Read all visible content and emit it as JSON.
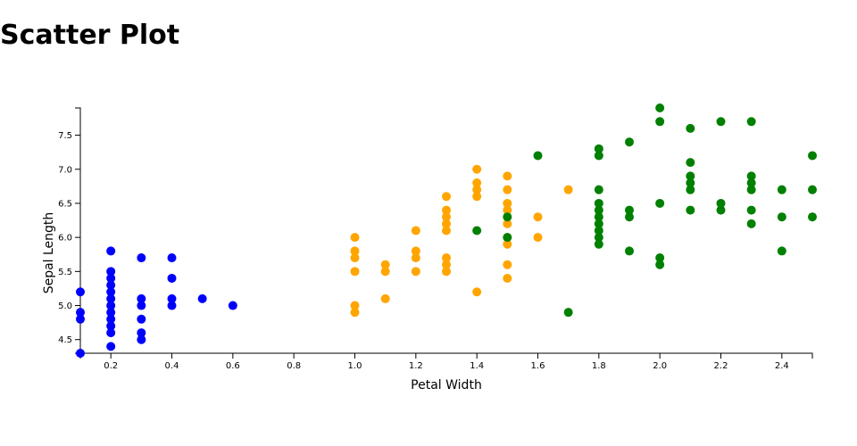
{
  "title": "Scatter Plot",
  "colors": {
    "setosa": "#0000ff",
    "versicolor": "#ffa500",
    "virginica": "#008000"
  },
  "chart_data": {
    "type": "scatter",
    "title": "Scatter Plot",
    "xlabel": "Petal Width",
    "ylabel": "Sepal Length",
    "xlim": [
      0.1,
      2.5
    ],
    "ylim": [
      4.3,
      7.9
    ],
    "x_ticks": [
      "0.2",
      "0.4",
      "0.6",
      "0.8",
      "1.0",
      "1.2",
      "1.4",
      "1.6",
      "1.8",
      "2.0",
      "2.2",
      "2.4"
    ],
    "y_ticks": [
      "4.5",
      "5.0",
      "5.5",
      "6.0",
      "6.5",
      "7.0",
      "7.5"
    ],
    "grid": false,
    "series": [
      {
        "color": "#0000ff",
        "points": [
          [
            0.1,
            5.2
          ],
          [
            0.1,
            4.9
          ],
          [
            0.1,
            4.8
          ],
          [
            0.1,
            4.3
          ],
          [
            0.2,
            5.8
          ],
          [
            0.2,
            5.5
          ],
          [
            0.2,
            5.4
          ],
          [
            0.2,
            5.3
          ],
          [
            0.2,
            5.2
          ],
          [
            0.2,
            5.1
          ],
          [
            0.2,
            5.0
          ],
          [
            0.2,
            4.9
          ],
          [
            0.2,
            4.8
          ],
          [
            0.2,
            4.7
          ],
          [
            0.2,
            4.6
          ],
          [
            0.2,
            4.4
          ],
          [
            0.3,
            5.7
          ],
          [
            0.3,
            5.1
          ],
          [
            0.3,
            5.0
          ],
          [
            0.3,
            4.8
          ],
          [
            0.3,
            4.6
          ],
          [
            0.3,
            4.5
          ],
          [
            0.4,
            5.7
          ],
          [
            0.4,
            5.4
          ],
          [
            0.4,
            5.1
          ],
          [
            0.4,
            5.0
          ],
          [
            0.5,
            5.1
          ],
          [
            0.6,
            5.0
          ]
        ]
      },
      {
        "color": "#ffa500",
        "points": [
          [
            1.0,
            6.0
          ],
          [
            1.0,
            5.8
          ],
          [
            1.0,
            5.7
          ],
          [
            1.0,
            5.5
          ],
          [
            1.0,
            5.0
          ],
          [
            1.0,
            4.9
          ],
          [
            1.1,
            5.6
          ],
          [
            1.1,
            5.5
          ],
          [
            1.1,
            5.1
          ],
          [
            1.2,
            6.1
          ],
          [
            1.2,
            5.8
          ],
          [
            1.2,
            5.7
          ],
          [
            1.2,
            5.5
          ],
          [
            1.3,
            6.6
          ],
          [
            1.3,
            6.4
          ],
          [
            1.3,
            6.3
          ],
          [
            1.3,
            6.2
          ],
          [
            1.3,
            6.1
          ],
          [
            1.3,
            5.7
          ],
          [
            1.3,
            5.6
          ],
          [
            1.3,
            5.5
          ],
          [
            1.4,
            7.0
          ],
          [
            1.4,
            6.8
          ],
          [
            1.4,
            6.7
          ],
          [
            1.4,
            6.6
          ],
          [
            1.4,
            5.2
          ],
          [
            1.5,
            6.9
          ],
          [
            1.5,
            6.7
          ],
          [
            1.5,
            6.5
          ],
          [
            1.5,
            6.4
          ],
          [
            1.5,
            6.2
          ],
          [
            1.5,
            6.0
          ],
          [
            1.5,
            5.9
          ],
          [
            1.5,
            5.6
          ],
          [
            1.5,
            5.4
          ],
          [
            1.6,
            6.3
          ],
          [
            1.6,
            6.0
          ],
          [
            1.7,
            6.7
          ]
        ]
      },
      {
        "color": "#008000",
        "points": [
          [
            1.4,
            6.1
          ],
          [
            1.5,
            6.3
          ],
          [
            1.5,
            6.0
          ],
          [
            1.6,
            7.2
          ],
          [
            1.7,
            4.9
          ],
          [
            1.8,
            7.3
          ],
          [
            1.8,
            7.2
          ],
          [
            1.8,
            6.7
          ],
          [
            1.8,
            6.5
          ],
          [
            1.8,
            6.4
          ],
          [
            1.8,
            6.3
          ],
          [
            1.8,
            6.2
          ],
          [
            1.8,
            6.1
          ],
          [
            1.8,
            6.0
          ],
          [
            1.8,
            5.9
          ],
          [
            1.9,
            7.4
          ],
          [
            1.9,
            6.4
          ],
          [
            1.9,
            6.3
          ],
          [
            1.9,
            5.8
          ],
          [
            2.0,
            7.9
          ],
          [
            2.0,
            7.7
          ],
          [
            2.0,
            6.5
          ],
          [
            2.0,
            5.7
          ],
          [
            2.0,
            5.6
          ],
          [
            2.1,
            7.6
          ],
          [
            2.1,
            7.1
          ],
          [
            2.1,
            6.9
          ],
          [
            2.1,
            6.8
          ],
          [
            2.1,
            6.7
          ],
          [
            2.1,
            6.4
          ],
          [
            2.2,
            7.7
          ],
          [
            2.2,
            6.5
          ],
          [
            2.2,
            6.4
          ],
          [
            2.3,
            7.7
          ],
          [
            2.3,
            6.9
          ],
          [
            2.3,
            6.8
          ],
          [
            2.3,
            6.7
          ],
          [
            2.3,
            6.4
          ],
          [
            2.3,
            6.2
          ],
          [
            2.4,
            6.7
          ],
          [
            2.4,
            6.3
          ],
          [
            2.4,
            5.8
          ],
          [
            2.5,
            7.2
          ],
          [
            2.5,
            6.7
          ],
          [
            2.5,
            6.3
          ]
        ]
      }
    ]
  }
}
